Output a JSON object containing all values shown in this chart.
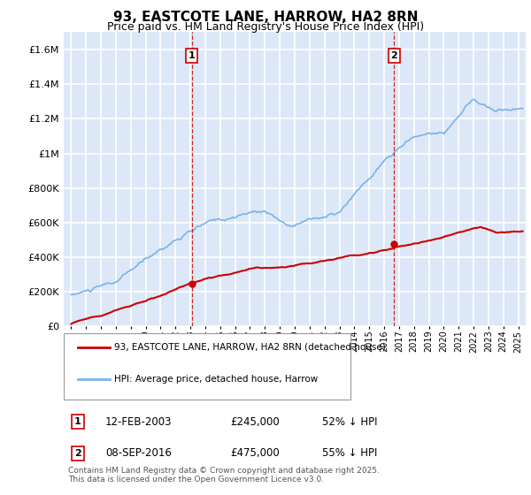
{
  "title": "93, EASTCOTE LANE, HARROW, HA2 8RN",
  "subtitle": "Price paid vs. HM Land Registry's House Price Index (HPI)",
  "footer": "Contains HM Land Registry data © Crown copyright and database right 2025.\nThis data is licensed under the Open Government Licence v3.0.",
  "legend_line1": "93, EASTCOTE LANE, HARROW, HA2 8RN (detached house)",
  "legend_line2": "HPI: Average price, detached house, Harrow",
  "transaction1_label": "1",
  "transaction1_date": "12-FEB-2003",
  "transaction1_price": "£245,000",
  "transaction1_hpi": "52% ↓ HPI",
  "transaction2_label": "2",
  "transaction2_date": "08-SEP-2016",
  "transaction2_price": "£475,000",
  "transaction2_hpi": "55% ↓ HPI",
  "vline1_x": 2003.1,
  "vline2_x": 2016.67,
  "marker1_red_x": 2003.1,
  "marker1_red_y": 245000,
  "marker2_red_x": 2016.67,
  "marker2_red_y": 475000,
  "ylim": [
    0,
    1700000
  ],
  "xlim": [
    1994.5,
    2025.5
  ],
  "plot_bg_color": "#dce8f8",
  "grid_color": "#ffffff",
  "hpi_color": "#7ab4e8",
  "price_color": "#cc0000",
  "vline_color": "#cc0000",
  "title_fontsize": 11,
  "subtitle_fontsize": 9,
  "label_box_color": "#cc0000"
}
